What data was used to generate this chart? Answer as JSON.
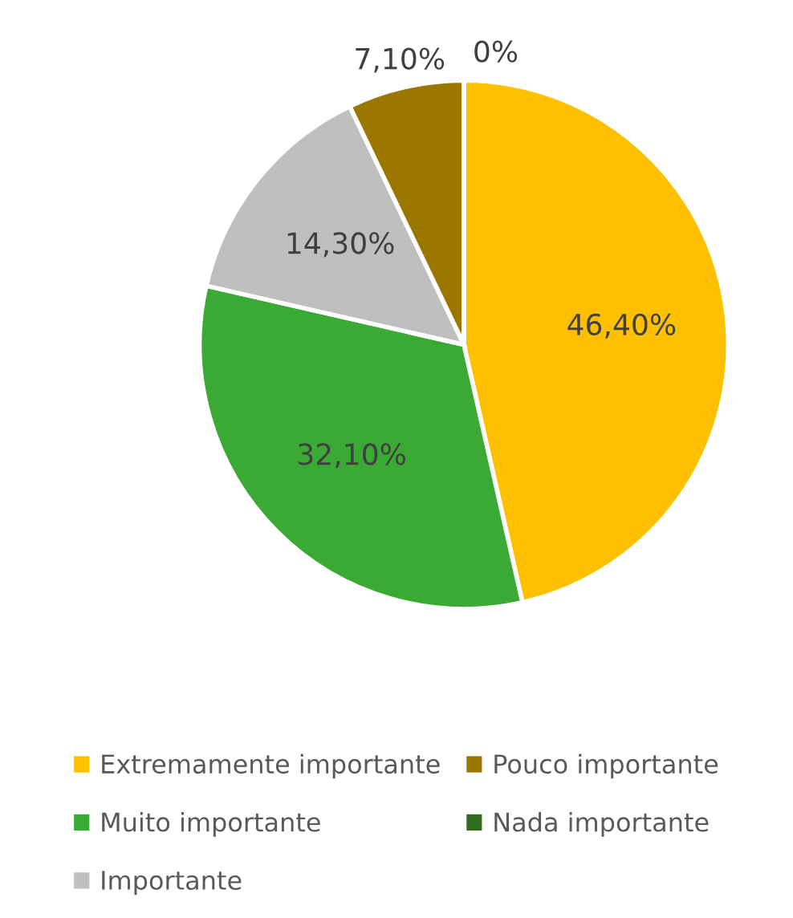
{
  "chart_data": {
    "type": "pie",
    "categories": [
      "Extremamente importante",
      "Muito importante",
      "Importante",
      "Pouco importante",
      "Nada importante"
    ],
    "values": [
      46.4,
      32.1,
      14.3,
      7.1,
      0
    ],
    "value_labels": [
      "46,40%",
      "32,10%",
      "14,30%",
      "7,10%",
      "0%"
    ],
    "colors": [
      "#ffc000",
      "#3aaa35",
      "#bfbfbf",
      "#9c7700",
      "#2e6b1f"
    ],
    "legend": "bottom"
  }
}
